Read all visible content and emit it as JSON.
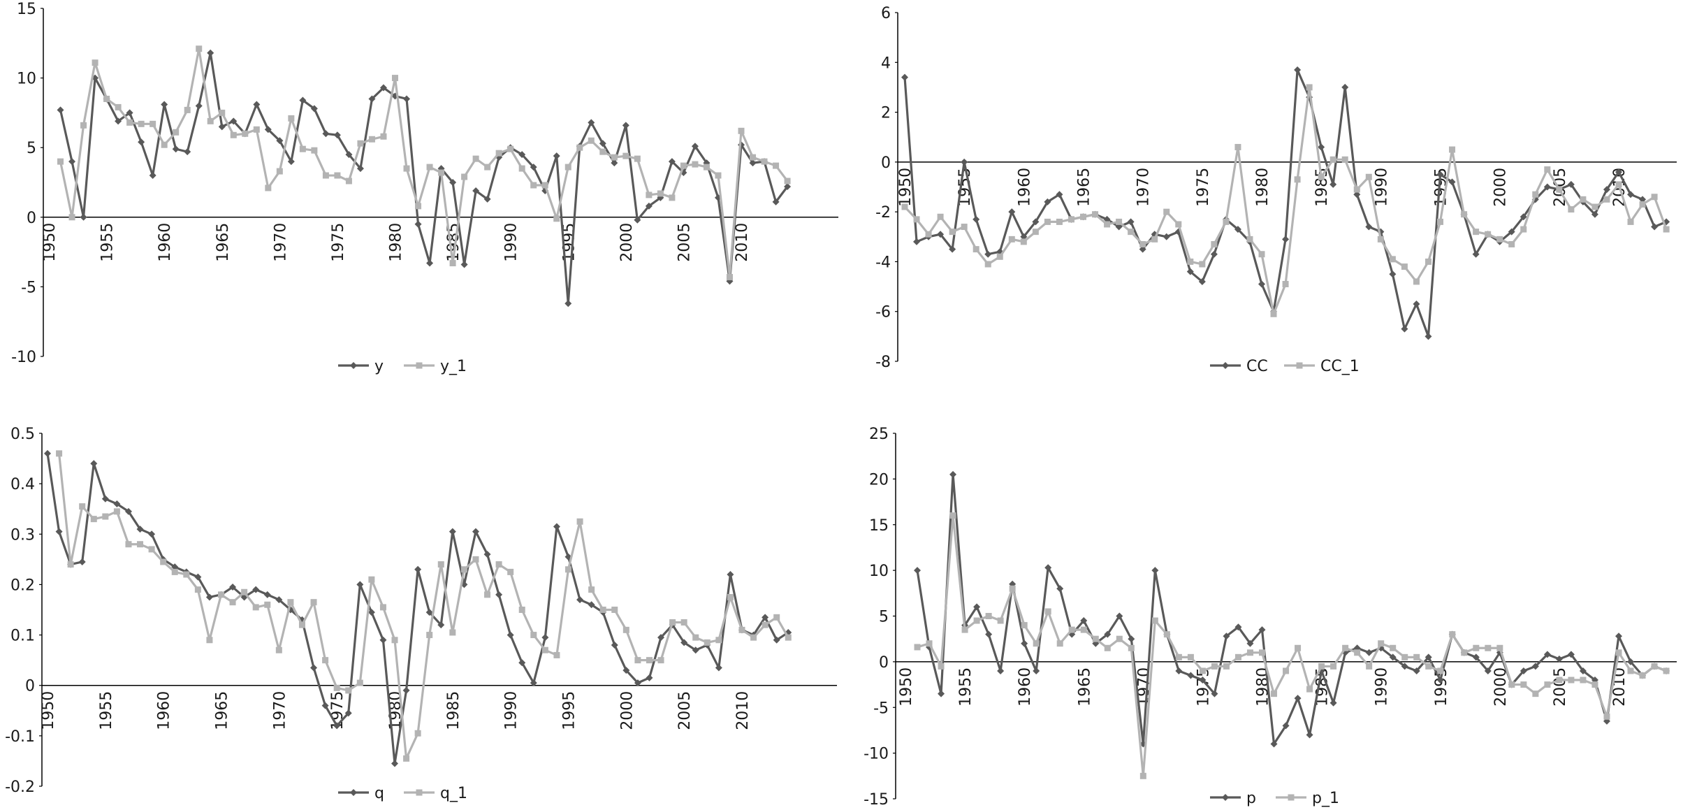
{
  "figure": {
    "colors": {
      "series_primary": "#595959",
      "series_lagged": "#b3b3b3",
      "axis": "#000000",
      "text": "#1a1a1a"
    }
  },
  "chart_data": [
    {
      "type": "line",
      "title": "",
      "xlabel": "",
      "ylabel": "",
      "ylim": [
        -10,
        15
      ],
      "y_ticks": [
        -10,
        -5,
        0,
        5,
        10,
        15
      ],
      "x_tick_labels": [
        "1950",
        "1955",
        "1960",
        "1965",
        "1970",
        "1975",
        "1980",
        "1985",
        "1990",
        "1995",
        "2000",
        "2005",
        "2010"
      ],
      "legend_position": "bottom",
      "x": [
        1951,
        1952,
        1953,
        1954,
        1955,
        1956,
        1957,
        1958,
        1959,
        1960,
        1961,
        1962,
        1963,
        1964,
        1965,
        1966,
        1967,
        1968,
        1969,
        1970,
        1971,
        1972,
        1973,
        1974,
        1975,
        1976,
        1977,
        1978,
        1979,
        1980,
        1981,
        1982,
        1983,
        1984,
        1985,
        1986,
        1987,
        1988,
        1989,
        1990,
        1991,
        1992,
        1993,
        1994,
        1995,
        1996,
        1997,
        1998,
        1999,
        2000,
        2001,
        2002,
        2003,
        2004,
        2005,
        2006,
        2007,
        2008,
        2009,
        2010,
        2011,
        2012,
        2013,
        2014
      ],
      "series": [
        {
          "name": "y",
          "marker": "diamond",
          "values": [
            7.7,
            4.0,
            0.0,
            10.0,
            8.5,
            6.9,
            7.5,
            5.4,
            3.0,
            8.1,
            4.9,
            4.7,
            8.0,
            11.8,
            6.5,
            6.9,
            6.0,
            8.1,
            6.3,
            5.5,
            4.0,
            8.4,
            7.8,
            6.0,
            5.9,
            4.5,
            3.5,
            8.5,
            9.3,
            8.7,
            8.5,
            -0.5,
            -3.3,
            3.5,
            2.5,
            -3.4,
            1.9,
            1.3,
            4.3,
            5.0,
            4.5,
            3.6,
            1.9,
            4.4,
            -6.2,
            5.1,
            6.8,
            5.3,
            3.9,
            6.6,
            -0.2,
            0.8,
            1.4,
            4.0,
            3.2,
            5.1,
            3.9,
            1.4,
            -4.6,
            5.2,
            3.9,
            4.0,
            1.1,
            2.2
          ]
        },
        {
          "name": "y_1",
          "marker": "square",
          "values": [
            4.0,
            0.0,
            6.6,
            11.1,
            8.5,
            7.9,
            6.8,
            6.7,
            6.7,
            5.2,
            6.1,
            7.7,
            12.1,
            6.9,
            7.5,
            5.9,
            6.0,
            6.3,
            2.1,
            3.3,
            7.1,
            4.9,
            4.8,
            3.0,
            3.0,
            2.6,
            5.3,
            5.6,
            5.8,
            10.0,
            3.5,
            0.8,
            3.6,
            3.2,
            -3.3,
            2.9,
            4.2,
            3.6,
            4.6,
            4.9,
            3.5,
            2.3,
            2.3,
            -0.1,
            3.6,
            5.0,
            5.5,
            4.7,
            4.3,
            4.4,
            4.2,
            1.6,
            1.7,
            1.4,
            3.7,
            3.8,
            3.6,
            3.0,
            -4.3,
            6.2,
            4.3,
            4.0,
            3.7,
            2.6
          ]
        }
      ]
    },
    {
      "type": "line",
      "title": "",
      "xlabel": "",
      "ylabel": "",
      "ylim": [
        -8,
        6
      ],
      "y_ticks": [
        -8,
        -6,
        -4,
        -2,
        0,
        2,
        4,
        6
      ],
      "x_tick_labels": [
        "1950",
        "1955",
        "1960",
        "1965",
        "1970",
        "1975",
        "1980",
        "1985",
        "1990",
        "1995",
        "2000",
        "2005",
        "2010"
      ],
      "legend_position": "bottom",
      "x": [
        1950,
        1951,
        1952,
        1953,
        1954,
        1955,
        1956,
        1957,
        1958,
        1959,
        1960,
        1961,
        1962,
        1963,
        1964,
        1965,
        1966,
        1967,
        1968,
        1969,
        1970,
        1971,
        1972,
        1973,
        1974,
        1975,
        1976,
        1977,
        1978,
        1979,
        1980,
        1981,
        1982,
        1983,
        1984,
        1985,
        1986,
        1987,
        1988,
        1989,
        1990,
        1991,
        1992,
        1993,
        1994,
        1995,
        1996,
        1997,
        1998,
        1999,
        2000,
        2001,
        2002,
        2003,
        2004,
        2005,
        2006,
        2007,
        2008,
        2009,
        2010,
        2011,
        2012,
        2013,
        2014
      ],
      "series": [
        {
          "name": "CC",
          "marker": "diamond",
          "values": [
            3.4,
            -3.2,
            -3.0,
            -2.9,
            -3.5,
            0.0,
            -2.3,
            -3.7,
            -3.6,
            -2.0,
            -3.0,
            -2.4,
            -1.6,
            -1.3,
            -2.3,
            -2.2,
            -2.1,
            -2.3,
            -2.6,
            -2.4,
            -3.5,
            -2.9,
            -3.0,
            -2.8,
            -4.4,
            -4.8,
            -3.7,
            -2.3,
            -2.7,
            -3.2,
            -4.9,
            -6.0,
            -3.1,
            3.7,
            2.6,
            0.6,
            -0.9,
            3.0,
            -1.3,
            -2.6,
            -2.8,
            -4.5,
            -6.7,
            -5.7,
            -7.0,
            -0.5,
            -0.8,
            -2.1,
            -3.7,
            -2.9,
            -3.2,
            -2.8,
            -2.2,
            -1.5,
            -1.0,
            -1.1,
            -0.9,
            -1.6,
            -2.1,
            -1.1,
            -0.4,
            -1.3,
            -1.5,
            -2.6,
            -2.4
          ]
        },
        {
          "name": "CC_1",
          "marker": "square",
          "values": [
            -1.8,
            -2.3,
            -2.9,
            -2.2,
            -2.8,
            -2.6,
            -3.5,
            -4.1,
            -3.8,
            -3.1,
            -3.2,
            -2.8,
            -2.4,
            -2.4,
            -2.3,
            -2.2,
            -2.1,
            -2.5,
            -2.4,
            -2.8,
            -3.3,
            -3.1,
            -2.0,
            -2.5,
            -4.0,
            -4.1,
            -3.3,
            -2.4,
            0.6,
            -3.1,
            -3.7,
            -6.1,
            -4.9,
            -0.7,
            3.0,
            -0.6,
            0.1,
            0.1,
            -1.1,
            -0.6,
            -3.1,
            -3.9,
            -4.2,
            -4.8,
            -4.0,
            -2.4,
            0.5,
            -2.1,
            -2.8,
            -2.9,
            -3.1,
            -3.3,
            -2.7,
            -1.3,
            -0.3,
            -1.1,
            -1.9,
            -1.5,
            -1.8,
            -1.5,
            -0.9,
            -2.4,
            -1.7,
            -1.4,
            -2.7
          ]
        }
      ]
    },
    {
      "type": "line",
      "title": "",
      "xlabel": "",
      "ylabel": "",
      "ylim": [
        -0.2,
        0.5
      ],
      "y_ticks": [
        -0.2,
        -0.1,
        0,
        0.1,
        0.2,
        0.3,
        0.4,
        0.5
      ],
      "y_tick_labels": [
        "-0.2",
        "-0.1",
        "0",
        "0.1",
        "0.2",
        "0.3",
        "0.4",
        "0.5"
      ],
      "x_tick_labels": [
        "1950",
        "1955",
        "1960",
        "1965",
        "1970",
        "1975",
        "1980",
        "1985",
        "1990",
        "1995",
        "2000",
        "2005",
        "2010"
      ],
      "legend_position": "bottom",
      "x": [
        1950,
        1951,
        1952,
        1953,
        1954,
        1955,
        1956,
        1957,
        1958,
        1959,
        1960,
        1961,
        1962,
        1963,
        1964,
        1965,
        1966,
        1967,
        1968,
        1969,
        1970,
        1971,
        1972,
        1973,
        1974,
        1975,
        1976,
        1977,
        1978,
        1979,
        1980,
        1981,
        1982,
        1983,
        1984,
        1985,
        1986,
        1987,
        1988,
        1989,
        1990,
        1991,
        1992,
        1993,
        1994,
        1995,
        1996,
        1997,
        1998,
        1999,
        2000,
        2001,
        2002,
        2003,
        2004,
        2005,
        2006,
        2007,
        2008,
        2009,
        2010,
        2011,
        2012,
        2013,
        2014
      ],
      "series": [
        {
          "name": "q",
          "marker": "diamond",
          "values": [
            0.46,
            0.305,
            0.24,
            0.245,
            0.44,
            0.37,
            0.36,
            0.345,
            0.31,
            0.3,
            0.25,
            0.235,
            0.225,
            0.215,
            0.175,
            0.18,
            0.195,
            0.175,
            0.19,
            0.18,
            0.17,
            0.15,
            0.13,
            0.035,
            -0.04,
            -0.08,
            -0.055,
            0.2,
            0.145,
            0.09,
            -0.155,
            -0.01,
            0.23,
            0.145,
            0.12,
            0.305,
            0.2,
            0.305,
            0.26,
            0.18,
            0.1,
            0.045,
            0.005,
            0.095,
            0.315,
            0.255,
            0.17,
            0.16,
            0.145,
            0.08,
            0.03,
            0.005,
            0.015,
            0.095,
            0.12,
            0.085,
            0.07,
            0.08,
            0.035,
            0.22,
            0.11,
            0.1,
            0.135,
            0.09,
            0.105
          ]
        },
        {
          "name": "q_1",
          "marker": "square",
          "values": [
            null,
            0.46,
            0.24,
            0.355,
            0.33,
            0.335,
            0.345,
            0.28,
            0.28,
            0.27,
            0.245,
            0.225,
            0.22,
            0.19,
            0.09,
            0.18,
            0.165,
            0.185,
            0.155,
            0.16,
            0.07,
            0.165,
            0.12,
            0.165,
            0.05,
            -0.005,
            -0.01,
            0.005,
            0.21,
            0.155,
            0.09,
            -0.145,
            -0.095,
            0.1,
            0.24,
            0.105,
            0.23,
            0.25,
            0.18,
            0.24,
            0.225,
            0.15,
            0.1,
            0.07,
            0.06,
            0.23,
            0.325,
            0.19,
            0.15,
            0.15,
            0.11,
            0.05,
            0.05,
            0.05,
            0.125,
            0.125,
            0.095,
            0.085,
            0.09,
            0.175,
            0.11,
            0.095,
            0.12,
            0.135,
            0.095
          ]
        }
      ]
    },
    {
      "type": "line",
      "title": "",
      "xlabel": "",
      "ylabel": "",
      "ylim": [
        -15,
        25
      ],
      "y_ticks": [
        -15,
        -10,
        -5,
        0,
        5,
        10,
        15,
        20,
        25
      ],
      "x_tick_labels": [
        "1950",
        "1955",
        "1960",
        "1965",
        "1970",
        "1975",
        "1980",
        "1985",
        "1990",
        "1995",
        "2000",
        "2005",
        "2010"
      ],
      "legend_position": "bottom",
      "x": [
        1951,
        1952,
        1953,
        1954,
        1955,
        1956,
        1957,
        1958,
        1959,
        1960,
        1961,
        1962,
        1963,
        1964,
        1965,
        1966,
        1967,
        1968,
        1969,
        1970,
        1971,
        1972,
        1973,
        1974,
        1975,
        1976,
        1977,
        1978,
        1979,
        1980,
        1981,
        1982,
        1983,
        1984,
        1985,
        1986,
        1987,
        1988,
        1989,
        1990,
        1991,
        1992,
        1993,
        1994,
        1995,
        1996,
        1997,
        1998,
        1999,
        2000,
        2001,
        2002,
        2003,
        2004,
        2005,
        2006,
        2007,
        2008,
        2009,
        2010,
        2011,
        2012,
        2013,
        2014
      ],
      "series": [
        {
          "name": "p",
          "marker": "diamond",
          "values": [
            10.0,
            1.6,
            -3.5,
            20.5,
            4.0,
            6.0,
            3.0,
            -1.0,
            8.5,
            2.0,
            -1.0,
            10.3,
            8.0,
            3.0,
            4.5,
            2.0,
            3.0,
            5.0,
            2.5,
            -9.0,
            10.0,
            3.0,
            -1.0,
            -1.5,
            -2.0,
            -3.5,
            2.8,
            3.8,
            2.0,
            3.5,
            -9.0,
            -7.0,
            -4.0,
            -8.0,
            -1.0,
            -4.5,
            1.0,
            1.5,
            1.0,
            1.5,
            0.5,
            -0.5,
            -1.0,
            0.5,
            -2.0,
            3.0,
            1.0,
            0.5,
            -1.0,
            1.0,
            -2.5,
            -1.0,
            -0.5,
            0.8,
            0.3,
            0.8,
            -1.0,
            -2.0,
            -6.5,
            2.8,
            0.0,
            -1.5,
            -0.5,
            -1.0
          ]
        },
        {
          "name": "p_1",
          "marker": "square",
          "values": [
            1.6,
            2.0,
            -0.5,
            16.0,
            3.5,
            4.5,
            5.0,
            4.5,
            8.0,
            4.0,
            2.0,
            5.5,
            2.0,
            3.5,
            3.5,
            2.5,
            1.5,
            2.5,
            1.5,
            -12.5,
            4.5,
            3.0,
            0.5,
            0.5,
            -1.0,
            -0.5,
            -0.5,
            0.5,
            1.0,
            1.0,
            -3.5,
            -1.0,
            1.5,
            -3.0,
            -0.5,
            -0.5,
            1.5,
            1.0,
            -0.5,
            2.0,
            1.5,
            0.5,
            0.5,
            -0.5,
            -1.0,
            3.0,
            1.0,
            1.5,
            1.5,
            1.5,
            -2.5,
            -2.5,
            -3.5,
            -2.5,
            -2.0,
            -2.0,
            -2.0,
            -2.5,
            -6.0,
            1.0,
            -1.0,
            -1.5,
            -0.5,
            -1.0
          ]
        }
      ]
    }
  ]
}
